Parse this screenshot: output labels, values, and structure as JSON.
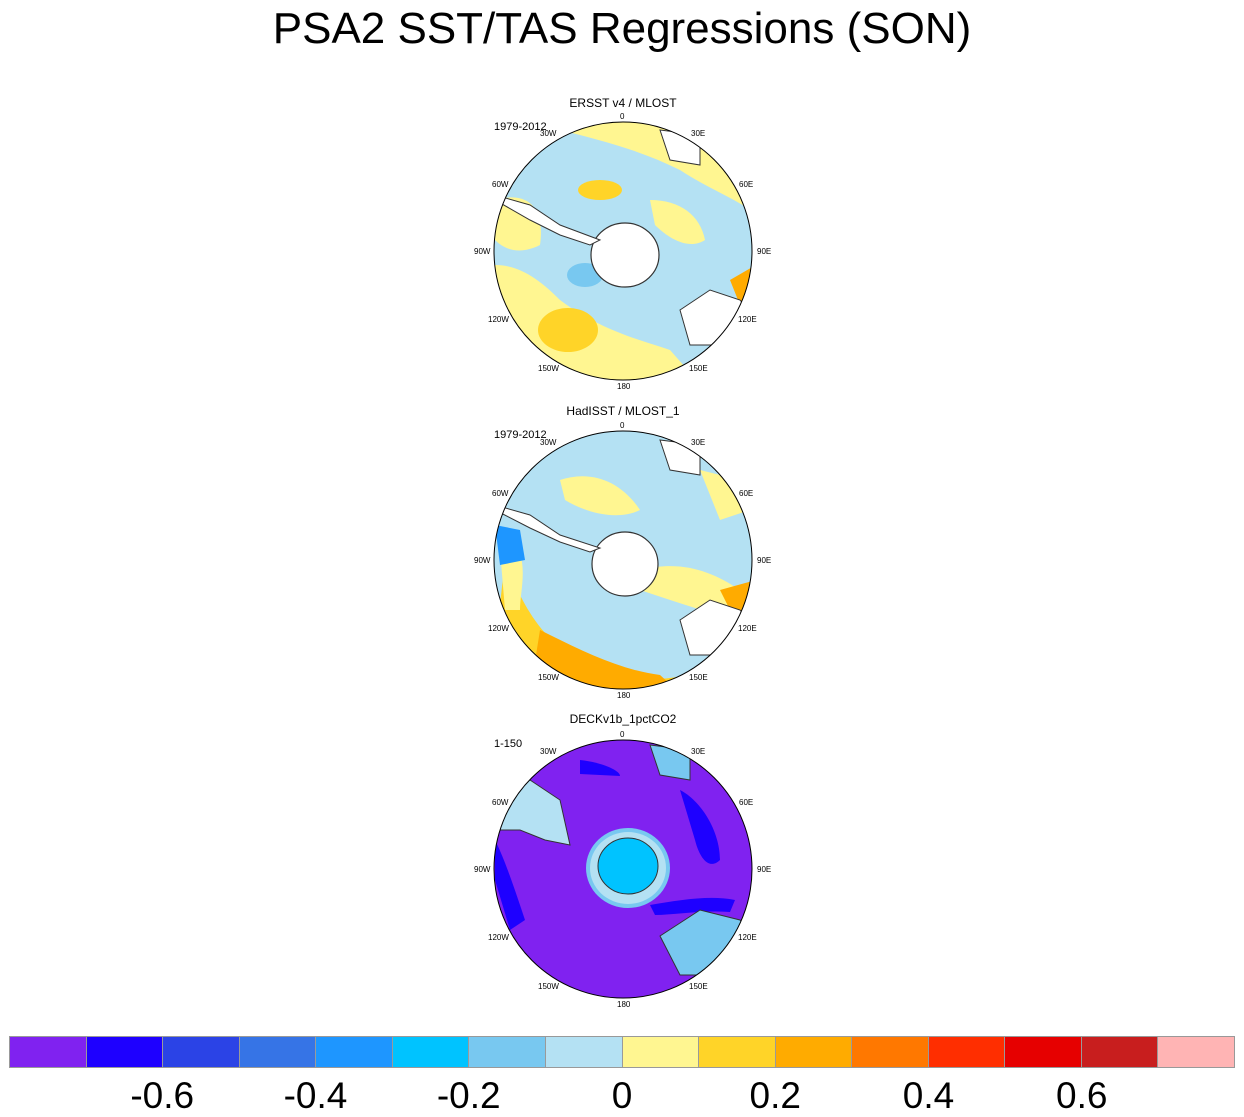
{
  "title": "PSA2 SST/TAS Regressions (SON)",
  "longitude_labels": [
    "0",
    "30E",
    "60E",
    "90E",
    "120E",
    "150E",
    "180",
    "150W",
    "120W",
    "90W",
    "60W",
    "30W"
  ],
  "panels": [
    {
      "title": "ERSST v4 / MLOST",
      "period": "1979-2012"
    },
    {
      "title": "HadISST / MLOST_1",
      "period": "1979-2012"
    },
    {
      "title": "DECKv1b_1pctCO2",
      "period": "1-150"
    }
  ],
  "colorbar": {
    "colors": [
      "#8022f0",
      "#1e00ff",
      "#2b43e6",
      "#3674e6",
      "#1e96ff",
      "#00c3ff",
      "#78c8f0",
      "#b4e1f3",
      "#fff691",
      "#ffd428",
      "#ffab00",
      "#ff7800",
      "#ff2e00",
      "#e60000",
      "#c81e1e",
      "#ffb4b4"
    ],
    "labels": [
      "-0.6",
      "-0.4",
      "-0.2",
      "0",
      "0.2",
      "0.4",
      "0.6"
    ]
  },
  "chart_data": [
    {
      "type": "heatmap",
      "projection": "south polar stereographic",
      "title": "ERSST v4 / MLOST",
      "period": "1979-2012",
      "levels": [
        -0.7,
        -0.6,
        -0.5,
        -0.4,
        -0.3,
        -0.2,
        -0.1,
        0,
        0.1,
        0.2,
        0.3,
        0.4,
        0.5,
        0.6,
        0.7
      ],
      "dominant_range": [
        -0.2,
        0.2
      ]
    },
    {
      "type": "heatmap",
      "projection": "south polar stereographic",
      "title": "HadISST / MLOST_1",
      "period": "1979-2012",
      "levels": [
        -0.7,
        -0.6,
        -0.5,
        -0.4,
        -0.3,
        -0.2,
        -0.1,
        0,
        0.1,
        0.2,
        0.3,
        0.4,
        0.5,
        0.6,
        0.7
      ],
      "dominant_range": [
        -0.3,
        0.4
      ]
    },
    {
      "type": "heatmap",
      "projection": "south polar stereographic",
      "title": "DECKv1b_1pctCO2",
      "period": "1-150",
      "levels": [
        -0.7,
        -0.6,
        -0.5,
        -0.4,
        -0.3,
        -0.2,
        -0.1,
        0,
        0.1,
        0.2,
        0.3,
        0.4,
        0.5,
        0.6,
        0.7
      ],
      "dominant_range": [
        -0.8,
        0.0
      ]
    }
  ]
}
